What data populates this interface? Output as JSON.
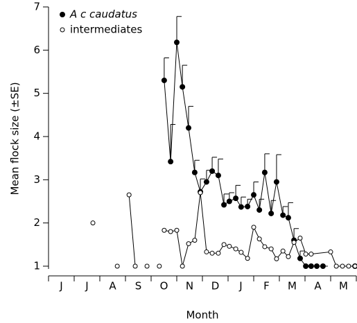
{
  "chart_data": {
    "type": "line",
    "ylabel": "Mean flock size (±SE)",
    "xlabel": "Month",
    "months": [
      "J",
      "J",
      "A",
      "S",
      "O",
      "N",
      "D",
      "J",
      "F",
      "M",
      "A",
      "M"
    ],
    "xlim": [
      0,
      12
    ],
    "xticks": [
      0,
      1,
      2,
      3,
      4,
      5,
      6,
      7,
      8,
      9,
      10,
      11,
      12
    ],
    "ylim": [
      1,
      7
    ],
    "yticks": [
      1,
      2,
      3,
      4,
      5,
      6,
      7
    ],
    "legend": "upper left",
    "series": [
      {
        "name": "A c caudatus",
        "marker": "filled",
        "color": "#000000",
        "x": [
          4.51,
          4.76,
          5.0,
          5.22,
          5.46,
          5.7,
          5.92,
          6.16,
          6.38,
          6.62,
          6.84,
          7.05,
          7.3,
          7.51,
          7.76,
          8.0,
          8.22,
          8.43,
          8.68,
          8.89,
          9.14,
          9.35,
          9.57,
          9.81,
          10.03,
          10.24,
          10.46,
          10.7,
          null,
          11.95
        ],
        "values": [
          5.3,
          3.42,
          6.18,
          5.15,
          4.2,
          3.17,
          2.72,
          2.95,
          3.2,
          3.1,
          2.42,
          2.5,
          2.57,
          2.37,
          2.38,
          2.65,
          2.3,
          3.17,
          2.22,
          2.95,
          2.18,
          2.12,
          1.6,
          1.18,
          1,
          1,
          1,
          1,
          null,
          1
        ],
        "errors": [
          0.52,
          0.86,
          0.6,
          0.5,
          0.5,
          0.28,
          0.3,
          0.27,
          0.32,
          0.38,
          0.25,
          0.2,
          0.3,
          0.23,
          0.17,
          0.3,
          0.25,
          0.43,
          0.3,
          0.63,
          0.2,
          0.35,
          0.27,
          0.17,
          0,
          0,
          0,
          0,
          null,
          0
        ]
      },
      {
        "name": "intermediates",
        "marker": "open",
        "color": "#000000",
        "x": [
          1.73,
          null,
          2.68,
          null,
          3.14,
          3.38,
          null,
          3.84,
          null,
          4.32,
          null,
          4.51,
          4.76,
          5.0,
          5.22,
          5.46,
          5.7,
          5.92,
          6.16,
          6.38,
          6.62,
          6.84,
          7.05,
          7.3,
          7.51,
          7.76,
          8.0,
          8.22,
          8.43,
          8.68,
          8.89,
          9.14,
          9.35,
          9.57,
          9.81,
          10.03,
          10.24,
          11.0,
          11.22,
          11.46,
          11.7,
          11.95
        ],
        "values": [
          2,
          null,
          1,
          null,
          2.65,
          1,
          null,
          1,
          null,
          1,
          null,
          1.83,
          1.8,
          1.83,
          1,
          1.52,
          1.6,
          2.7,
          1.33,
          1.3,
          1.3,
          1.5,
          1.46,
          1.4,
          1.32,
          1.18,
          1.9,
          1.63,
          1.45,
          1.4,
          1.17,
          1.35,
          1.22,
          1.55,
          1.65,
          1.28,
          1.28,
          1.33,
          1,
          1,
          1,
          1
        ]
      }
    ]
  }
}
